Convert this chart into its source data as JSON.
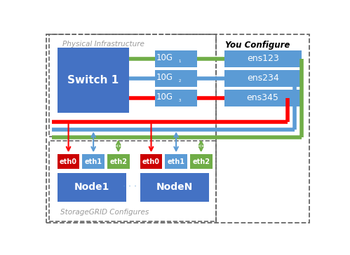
{
  "bg_color": "#ffffff",
  "box_blue": "#4472C4",
  "box_blue_light": "#5B9BD5",
  "line_red": "#FF0000",
  "line_blue": "#5B9BD5",
  "line_green": "#70AD47",
  "text_gray": "#999999",
  "text_white": "#ffffff",
  "text_dark": "#000000",
  "port_labels_10g": [
    "10G₁",
    "10G₂",
    "10G₃"
  ],
  "ens_labels": [
    "ens123",
    "ens234",
    "ens345"
  ],
  "node1_label": "Node1",
  "nodeN_label": "NodeN",
  "eth_colors": [
    "#CC0000",
    "#5B9BD5",
    "#70AD47"
  ],
  "eth_labels": [
    "eth0",
    "eth1",
    "eth2"
  ]
}
